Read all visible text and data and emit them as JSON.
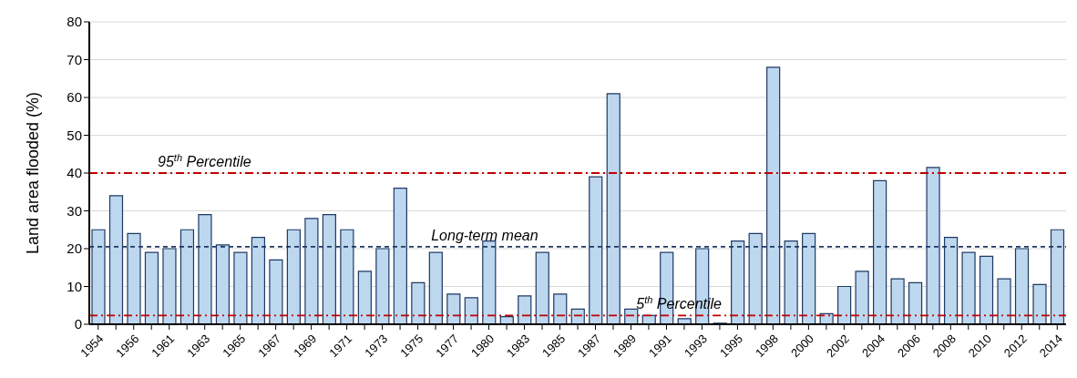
{
  "chart_data": {
    "type": "bar",
    "ylabel": "Land area flooded (%)",
    "categories": [
      "1954",
      null,
      "1956",
      null,
      "1961",
      null,
      "1963",
      null,
      "1965",
      null,
      "1967",
      null,
      "1969",
      null,
      "1971",
      null,
      "1973",
      null,
      "1975",
      null,
      "1977",
      null,
      "1980",
      null,
      "1983",
      null,
      "1985",
      null,
      "1987",
      null,
      "1989",
      null,
      "1991",
      null,
      "1993",
      null,
      "1995",
      null,
      "1998",
      null,
      "2000",
      null,
      "2002",
      null,
      "2004",
      null,
      "2006",
      null,
      "2008",
      null,
      "2010",
      null,
      "2012",
      null,
      "2014"
    ],
    "values": [
      25,
      34,
      24,
      19,
      20,
      25,
      29,
      21,
      19,
      23,
      17,
      25,
      28,
      29,
      25,
      14,
      20,
      36,
      11,
      19,
      8,
      7,
      22,
      2,
      7.5,
      19,
      8,
      4,
      39,
      61,
      4,
      2.3,
      19,
      1.5,
      20,
      0.3,
      22,
      24,
      68,
      22,
      24,
      2.8,
      10,
      14,
      38,
      12,
      11,
      41.5,
      23,
      19,
      18,
      12,
      20,
      10.5,
      25
    ],
    "color": "#bdd7ee",
    "ylim": [
      0,
      80
    ],
    "yticks": [
      0,
      10,
      20,
      30,
      40,
      50,
      60,
      70,
      80
    ],
    "grid": "y",
    "ref_lines": [
      {
        "axis": "y",
        "value": 40,
        "label": "95$^{th}$ Percentile",
        "color": "#c00000",
        "line_style": "dashdot"
      },
      {
        "axis": "y",
        "value": 20.5,
        "label": "Long-term mean",
        "color": "#1f3864",
        "line_style": "dashed"
      },
      {
        "axis": "y",
        "value": 2.3,
        "label": "5$^{th}$ Percentile",
        "color": "#c00000",
        "line_style": "dashdot"
      }
    ]
  }
}
